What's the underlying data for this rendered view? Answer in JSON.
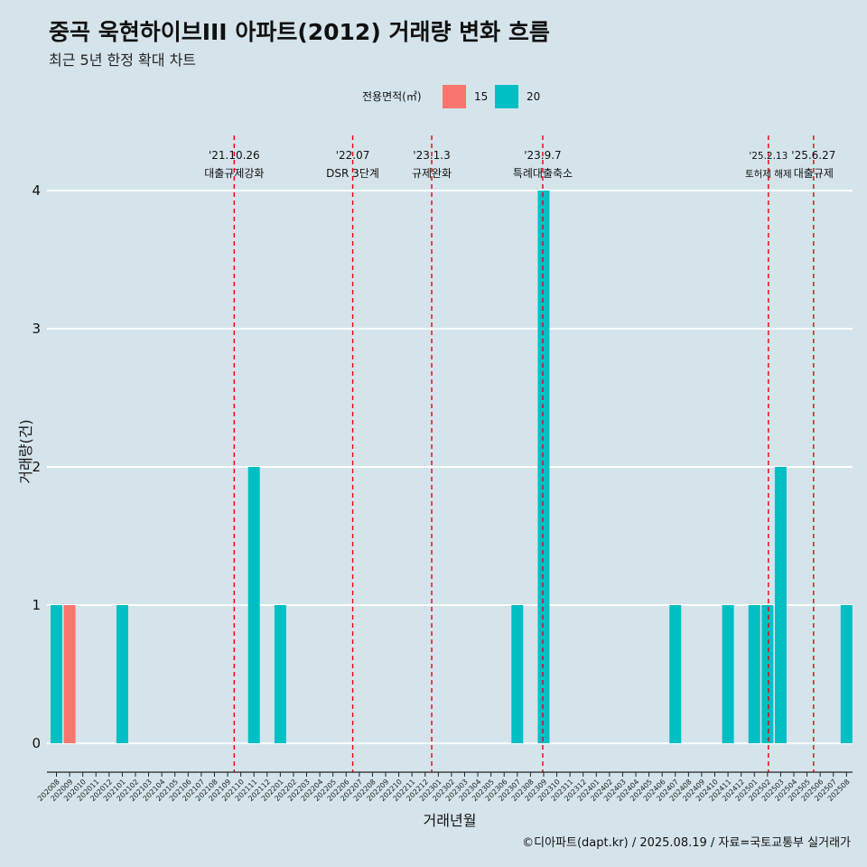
{
  "title": "중곡 욱현하이브III 아파트(2012) 거래량 변화 흐름",
  "subtitle": "최근 5년 한정 확대 차트",
  "caption": "©디아파트(dapt.kr) / 2025.08.19 / 자료=국토교통부 실거래가",
  "colors": {
    "series_15": "#f8766d",
    "series_20": "#00bfc4",
    "event_line": "#e8000b",
    "background": "#d5e4eb"
  },
  "chart_data": {
    "type": "bar",
    "xlabel": "거래년월",
    "ylabel": "거래량(건)",
    "ylim": [
      0,
      4
    ],
    "yticks": [
      0,
      1,
      2,
      3,
      4
    ],
    "grid": true,
    "legend_position": "top",
    "legend_title": "전용면적(㎡)",
    "categories": [
      "202008",
      "202009",
      "202010",
      "202011",
      "202012",
      "202101",
      "202102",
      "202103",
      "202104",
      "202105",
      "202106",
      "202107",
      "202108",
      "202109",
      "202110",
      "202111",
      "202112",
      "202201",
      "202202",
      "202203",
      "202204",
      "202205",
      "202206",
      "202207",
      "202208",
      "202209",
      "202210",
      "202211",
      "202212",
      "202301",
      "202302",
      "202303",
      "202304",
      "202305",
      "202306",
      "202307",
      "202308",
      "202309",
      "202310",
      "202311",
      "202312",
      "202401",
      "202402",
      "202403",
      "202404",
      "202405",
      "202406",
      "202407",
      "202408",
      "202409",
      "202410",
      "202411",
      "202412",
      "202501",
      "202502",
      "202503",
      "202504",
      "202505",
      "202506",
      "202507",
      "202508"
    ],
    "series": [
      {
        "name": "15",
        "values": [
          0,
          1,
          0,
          0,
          0,
          0,
          0,
          0,
          0,
          0,
          0,
          0,
          0,
          0,
          0,
          0,
          0,
          0,
          0,
          0,
          0,
          0,
          0,
          0,
          0,
          0,
          0,
          0,
          0,
          0,
          0,
          0,
          0,
          0,
          0,
          0,
          0,
          0,
          0,
          0,
          0,
          0,
          0,
          0,
          0,
          0,
          0,
          0,
          0,
          0,
          0,
          0,
          0,
          0,
          0,
          0,
          0,
          0,
          0,
          0,
          0
        ]
      },
      {
        "name": "20",
        "values": [
          1,
          0,
          0,
          0,
          0,
          1,
          0,
          0,
          0,
          0,
          0,
          0,
          0,
          0,
          0,
          2,
          0,
          1,
          0,
          0,
          0,
          0,
          0,
          0,
          0,
          0,
          0,
          0,
          0,
          0,
          0,
          0,
          0,
          0,
          0,
          1,
          0,
          4,
          0,
          0,
          0,
          0,
          0,
          0,
          0,
          0,
          0,
          1,
          0,
          0,
          0,
          1,
          0,
          1,
          1,
          2,
          0,
          0,
          0,
          0,
          1
        ]
      }
    ],
    "annotations": [
      {
        "date": "'21.10.26",
        "label": "대출규제강화",
        "at": "202110"
      },
      {
        "date": "'22.07",
        "label": "DSR 3단계",
        "at": "202207"
      },
      {
        "date": "'23.1.3",
        "label": "규제완화",
        "at": "202301"
      },
      {
        "date": "'23.9.7",
        "label": "특례대출축소",
        "at": "202309"
      },
      {
        "date": "'25.2.13",
        "label": "토허제 해제",
        "at": "202502"
      },
      {
        "date": "'25.6.27",
        "label": "대출규제",
        "at": "202506"
      }
    ]
  }
}
